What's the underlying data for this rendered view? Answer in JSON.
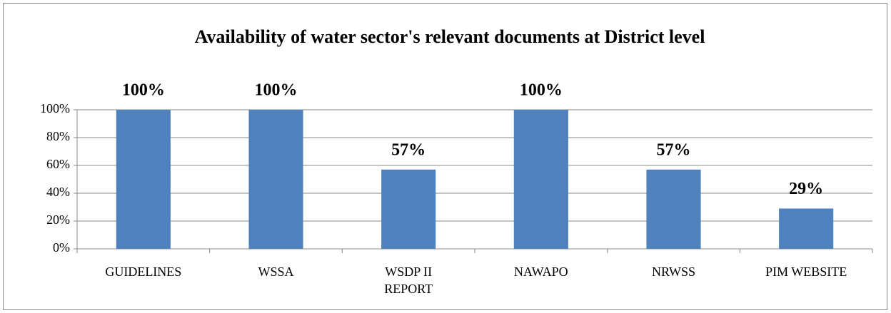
{
  "chart_data": {
    "type": "bar",
    "title": "Availability of water sector's relevant documents at District level",
    "categories": [
      "GUIDELINES",
      "WSSA",
      "WSDP II REPORT",
      "NAWAPO",
      "NRWSS",
      "PIM WEBSITE"
    ],
    "values": [
      100,
      100,
      57,
      100,
      57,
      29
    ],
    "value_labels": [
      "100%",
      "100%",
      "57%",
      "100%",
      "57%",
      "29%"
    ],
    "color": "#4f81bd",
    "ylim": [
      0,
      100
    ],
    "yticks": [
      {
        "value": 0,
        "label": "0%"
      },
      {
        "value": 20,
        "label": "20%"
      },
      {
        "value": 40,
        "label": "40%"
      },
      {
        "value": 60,
        "label": "60%"
      },
      {
        "value": 80,
        "label": "80%"
      },
      {
        "value": 100,
        "label": "100%"
      }
    ],
    "grid": true
  }
}
